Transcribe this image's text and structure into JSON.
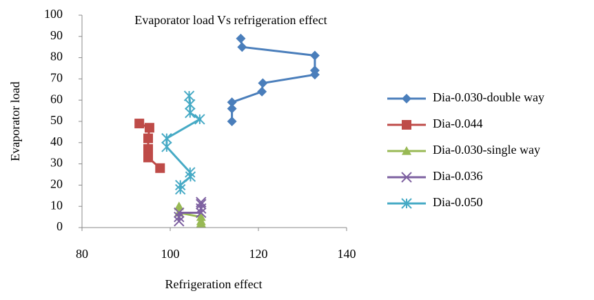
{
  "chart_data": {
    "type": "scatter",
    "title": "Evaporator load Vs refrigeration effect",
    "x_label": "Refrigeration effect",
    "y_label": "Evaporator load",
    "xlim": [
      80,
      140
    ],
    "xticks": [
      80,
      100,
      120,
      140
    ],
    "ylim": [
      0,
      100
    ],
    "yticks": [
      0,
      10,
      20,
      30,
      40,
      50,
      60,
      70,
      80,
      90,
      100
    ],
    "legend": "right",
    "series": [
      {
        "name": "Dia-0.030-double way",
        "color": "#4a7ebb",
        "marker": "diamond",
        "x": [
          116,
          116.3,
          132.8,
          132.8,
          132.8,
          121,
          120.8,
          114,
          114,
          114
        ],
        "values": [
          89,
          85,
          81,
          74,
          72,
          68,
          64,
          59,
          56,
          50
        ]
      },
      {
        "name": "Dia-0.044",
        "color": "#be4b48",
        "marker": "square",
        "x": [
          93,
          95.3,
          95,
          95,
          95,
          97.7
        ],
        "values": [
          49,
          47,
          42,
          37,
          33,
          28
        ]
      },
      {
        "name": "Dia-0.030-single way",
        "color": "#98b954",
        "marker": "triangle",
        "x": [
          102,
          102,
          107,
          107,
          107
        ],
        "values": [
          10,
          7,
          5,
          3,
          2
        ]
      },
      {
        "name": "Dia-0.036",
        "color": "#7d60a0",
        "marker": "cross",
        "x": [
          102,
          102,
          102,
          107,
          107,
          107,
          107
        ],
        "values": [
          3,
          5,
          7,
          7,
          9,
          11,
          12
        ]
      },
      {
        "name": "Dia-0.050",
        "color": "#46aac5",
        "marker": "star",
        "x": [
          104.3,
          104.5,
          104.5,
          106.7,
          99.2,
          99.2,
          104.5,
          104.6,
          102.3,
          102.3
        ],
        "values": [
          62,
          58,
          54,
          51,
          42,
          38,
          26,
          24,
          20,
          18
        ]
      }
    ]
  }
}
